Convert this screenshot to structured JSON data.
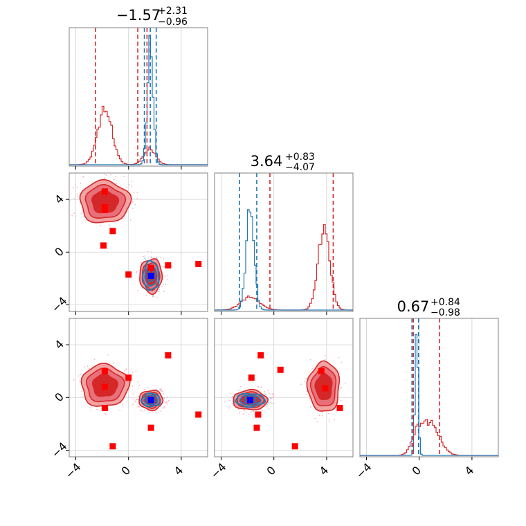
{
  "colors": {
    "red": "#d62728",
    "red_fill_outer": "#f2a3a3",
    "red_fill_mid": "#e8707a",
    "red_fill_inner": "#d62728",
    "blue": "#1f77b4",
    "blue_marker": "#0000ff",
    "marker_red": "#ff0000",
    "grid": "#d0d0d0"
  },
  "titles": {
    "t0": {
      "main": "−1.57",
      "sup": "+2.31",
      "sub": "−0.96"
    },
    "t1": {
      "main": "3.64",
      "sup": "+0.83",
      "sub": "−4.07"
    },
    "t2": {
      "main": "0.67",
      "sup": "+0.84",
      "sub": "−0.98"
    }
  },
  "tick_labels": {
    "x": [
      "−4",
      "0",
      "4"
    ],
    "y": [
      "−4",
      "0",
      "4"
    ]
  },
  "chart_data": {
    "type": "corner",
    "parameters": 3,
    "axis_range": [
      -4.5,
      6
    ],
    "ticks": [
      -4,
      0,
      4
    ],
    "grid": true,
    "estimates": [
      {
        "median": -1.57,
        "plus": 2.31,
        "minus": 0.96
      },
      {
        "median": 3.64,
        "plus": 0.83,
        "minus": 4.07
      },
      {
        "median": 0.67,
        "plus": 0.84,
        "minus": 0.98
      }
    ],
    "marginal_lines": {
      "p0": {
        "red": [
          -2.5,
          0.7,
          1.4
        ],
        "blue": [
          1.2,
          1.65,
          2.1
        ]
      },
      "p1": {
        "red": [
          -0.3,
          4.5
        ],
        "blue": [
          -2.6,
          -1.3
        ]
      },
      "p2": {
        "red": [
          -0.45,
          1.55
        ],
        "blue": [
          -0.55,
          -0.05
        ]
      }
    },
    "marginal_modes": {
      "p0": {
        "red": [
          {
            "mu": -1.8,
            "sigma": 0.55,
            "amp": 0.42
          },
          {
            "mu": 1.6,
            "sigma": 0.45,
            "amp": 0.12
          }
        ],
        "blue": [
          {
            "mu": 1.65,
            "sigma": 0.22,
            "amp": 0.9
          }
        ]
      },
      "p1": {
        "red": [
          {
            "mu": 3.8,
            "sigma": 0.45,
            "amp": 0.62
          },
          {
            "mu": -1.8,
            "sigma": 0.7,
            "amp": 0.1
          }
        ],
        "blue": [
          {
            "mu": -1.8,
            "sigma": 0.3,
            "amp": 0.78
          }
        ]
      },
      "p2": {
        "red": [
          {
            "mu": 0.8,
            "sigma": 0.7,
            "amp": 0.25
          },
          {
            "mu": -0.2,
            "sigma": 0.4,
            "amp": 0.12
          }
        ],
        "blue": [
          {
            "mu": -0.2,
            "sigma": 0.12,
            "amp": 0.88
          }
        ]
      }
    },
    "contours_2d": {
      "p1_vs_p0": [
        {
          "color": "red",
          "cx": -1.8,
          "cy": 3.8,
          "rx": 1.9,
          "ry": 1.6
        },
        {
          "color": "red",
          "cx": 1.7,
          "cy": -1.8,
          "rx": 0.85,
          "ry": 1.3
        },
        {
          "color": "blue",
          "cx": 1.7,
          "cy": -1.8,
          "rx": 0.6,
          "ry": 1.1
        }
      ],
      "p2_vs_p0": [
        {
          "color": "red",
          "cx": -1.8,
          "cy": 0.9,
          "rx": 1.8,
          "ry": 1.6
        },
        {
          "color": "red",
          "cx": 1.7,
          "cy": -0.2,
          "rx": 0.9,
          "ry": 0.75
        },
        {
          "color": "blue",
          "cx": 1.7,
          "cy": -0.2,
          "rx": 0.7,
          "ry": 0.5
        }
      ],
      "p2_vs_p1": [
        {
          "color": "red",
          "cx": -1.8,
          "cy": -0.2,
          "rx": 1.3,
          "ry": 0.75
        },
        {
          "color": "blue",
          "cx": -1.8,
          "cy": -0.2,
          "rx": 1.1,
          "ry": 0.5
        },
        {
          "color": "red",
          "cx": 3.8,
          "cy": 0.8,
          "rx": 1.2,
          "ry": 1.9
        }
      ]
    },
    "markers_2d": {
      "p1_vs_p0": {
        "red": [
          [
            -1.8,
            4.6
          ],
          [
            -1.8,
            3.4
          ],
          [
            -1.8,
            3.2
          ],
          [
            -1.2,
            1.6
          ],
          [
            -1.9,
            0.5
          ],
          [
            0,
            -1.7
          ],
          [
            1.7,
            -1.2
          ],
          [
            3,
            -1
          ],
          [
            5.3,
            -0.9
          ]
        ],
        "blue": [
          [
            1.7,
            -1.8
          ]
        ]
      },
      "p2_vs_p0": {
        "red": [
          [
            -1.8,
            2
          ],
          [
            -1.8,
            0.8
          ],
          [
            -1.8,
            -0.8
          ],
          [
            0,
            1.5
          ],
          [
            3,
            3.2
          ],
          [
            1.7,
            -2.3
          ],
          [
            -1.2,
            -3.7
          ],
          [
            5.3,
            -1.3
          ]
        ],
        "blue": [
          [
            1.7,
            -0.2
          ]
        ]
      },
      "p2_vs_p1": {
        "red": [
          [
            -1,
            3.2
          ],
          [
            -1.7,
            1.5
          ],
          [
            0.5,
            2.1
          ],
          [
            3.6,
            2
          ],
          [
            3.9,
            0.7
          ],
          [
            5,
            -0.8
          ],
          [
            -1.3,
            -2.3
          ],
          [
            -1.2,
            -1.3
          ],
          [
            1.6,
            -3.7
          ]
        ],
        "blue": [
          [
            -1.8,
            -0.2
          ]
        ]
      }
    }
  }
}
